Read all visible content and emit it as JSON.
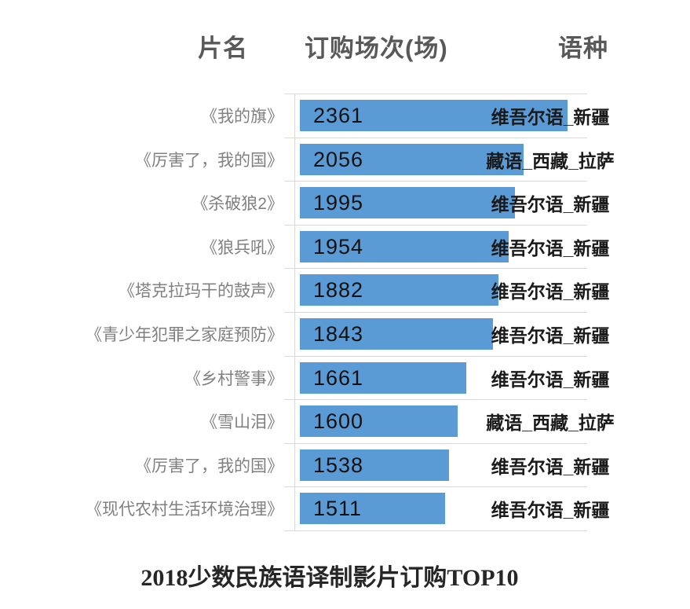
{
  "header": {
    "col_film": "片名",
    "col_orders": "订购场次(场)",
    "col_language": "语种"
  },
  "title": "2018少数民族语译制影片订购TOP10",
  "colors": {
    "bar": "#5b9bd5",
    "grid": "#d9d9d9",
    "film_label": "#808080",
    "header_text": "#595959",
    "value_text": "#111111",
    "language_text": "#1a1a1a",
    "title_text": "#262626"
  },
  "chart_data": {
    "type": "bar",
    "orientation": "horizontal",
    "title": "2018少数民族语译制影片订购TOP10",
    "xlabel": "订购场次(场)",
    "ylabel": "片名",
    "xlim": [
      500,
      2500
    ],
    "grid": "category-separators",
    "value_label_position": "inside-start",
    "legend": false,
    "categories": [
      "《我的旗》",
      "《厉害了，我的国》",
      "《杀破狼2》",
      "《狼兵吼》",
      "《塔克拉玛干的鼓声》",
      "《青少年犯罪之家庭预防》",
      "《乡村警事》",
      "《雪山泪》",
      "《厉害了，我的国》",
      "《现代农村生活环境治理》"
    ],
    "values": [
      2361,
      2056,
      1995,
      1954,
      1882,
      1843,
      1661,
      1600,
      1538,
      1511
    ],
    "languages": [
      "维吾尔语_新疆",
      "藏语_西藏_拉萨",
      "维吾尔语_新疆",
      "维吾尔语_新疆",
      "维吾尔语_新疆",
      "维吾尔语_新疆",
      "维吾尔语_新疆",
      "藏语_西藏_拉萨",
      "维吾尔语_新疆",
      "维吾尔语_新疆"
    ]
  }
}
